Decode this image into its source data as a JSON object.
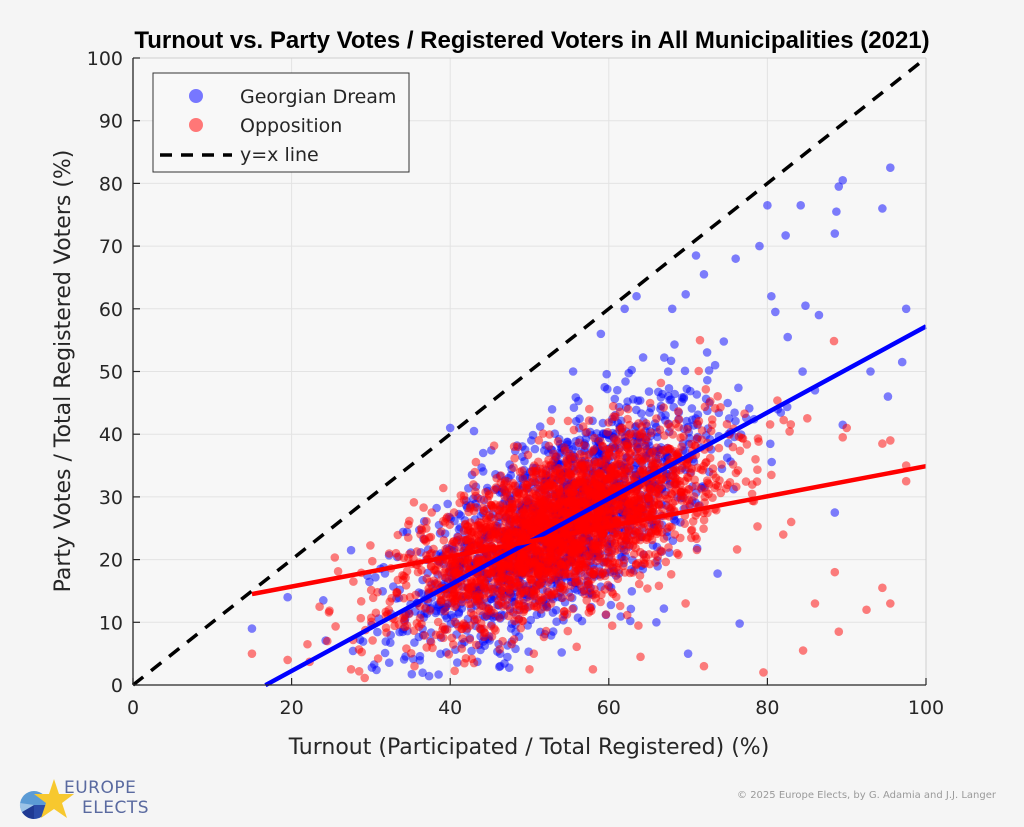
{
  "chart_data": {
    "type": "scatter",
    "title": "Turnout vs. Party Votes / Registered Voters in All Municipalities (2021)",
    "xlabel": "Turnout (Participated / Total Registered) (%)",
    "ylabel": "Party Votes / Total Registered Voters (%)",
    "xlim": [
      0,
      100
    ],
    "ylim": [
      0,
      100
    ],
    "xticks": [
      "0",
      "20",
      "40",
      "60",
      "80",
      "100"
    ],
    "yticks": [
      "0",
      "10",
      "20",
      "30",
      "40",
      "50",
      "60",
      "70",
      "80",
      "90",
      "100"
    ],
    "grid": true,
    "legend_position": "top-left",
    "legend": [
      {
        "label": "Georgian Dream",
        "marker": "circle",
        "color": "#6666ff"
      },
      {
        "label": "Opposition",
        "marker": "circle",
        "color": "#ff6666"
      },
      {
        "label": "y=x line",
        "marker": "dashed-line",
        "color": "#000000"
      }
    ],
    "series": [
      {
        "name": "Georgian Dream",
        "color": "#0000ff",
        "alpha": 0.5,
        "cloud": {
          "n": 1700,
          "x_mean": 54,
          "x_sd": 9.5,
          "slope": 0.69,
          "intercept": -11.5,
          "resid_sd": 7.5
        },
        "outliers": [
          [
            15,
            9
          ],
          [
            19.5,
            14
          ],
          [
            24,
            13.5
          ],
          [
            27.5,
            21.5
          ],
          [
            40,
            41
          ],
          [
            43,
            40.5
          ],
          [
            55.5,
            50
          ],
          [
            59,
            56
          ],
          [
            62,
            60
          ],
          [
            63.5,
            62
          ],
          [
            68,
            60
          ],
          [
            71,
            68.5
          ],
          [
            72,
            65.5
          ],
          [
            76,
            68
          ],
          [
            79,
            70
          ],
          [
            80.5,
            62
          ],
          [
            80,
            76.5
          ],
          [
            81,
            59.5
          ],
          [
            82.3,
            71.7
          ],
          [
            84.2,
            76.5
          ],
          [
            84.8,
            60.5
          ],
          [
            86.5,
            59
          ],
          [
            88.5,
            72
          ],
          [
            88.7,
            75.5
          ],
          [
            89,
            79.5
          ],
          [
            89.5,
            80.5
          ],
          [
            94.5,
            76
          ],
          [
            95.5,
            82.5
          ],
          [
            97.5,
            60
          ],
          [
            95.2,
            46
          ],
          [
            97,
            51.5
          ],
          [
            93,
            50
          ],
          [
            86,
            47
          ],
          [
            89.5,
            41.5
          ],
          [
            88.5,
            27.5
          ],
          [
            76.5,
            9.8
          ],
          [
            70,
            5
          ],
          [
            66,
            10
          ]
        ],
        "fit_line": {
          "slope": 0.687,
          "intercept": -11.5,
          "x_range": [
            16.7,
            100
          ]
        }
      },
      {
        "name": "Opposition",
        "color": "#ff0000",
        "alpha": 0.5,
        "cloud": {
          "n": 2600,
          "x_mean": 54,
          "x_sd": 9.5,
          "slope": 0.5,
          "intercept": -2,
          "resid_sd": 5.8
        },
        "outliers": [
          [
            15,
            5
          ],
          [
            19.5,
            4
          ],
          [
            22,
            6.5
          ],
          [
            24.5,
            7
          ],
          [
            27.5,
            2.5
          ],
          [
            35.5,
            3
          ],
          [
            43,
            3.5
          ],
          [
            50,
            2.5
          ],
          [
            58,
            2.5
          ],
          [
            64,
            4.5
          ],
          [
            72,
            3
          ],
          [
            79.5,
            2
          ],
          [
            84.5,
            5.5
          ],
          [
            89,
            8.5
          ],
          [
            92.5,
            12
          ],
          [
            94.5,
            15.5
          ],
          [
            95.5,
            13
          ],
          [
            86,
            13
          ],
          [
            88.5,
            18
          ],
          [
            82,
            24
          ],
          [
            78.5,
            36
          ],
          [
            80.5,
            33.5
          ],
          [
            89.5,
            39.5
          ],
          [
            90,
            41
          ],
          [
            94.5,
            38.5
          ],
          [
            95.5,
            39
          ],
          [
            97.5,
            35
          ],
          [
            97.5,
            32.5
          ],
          [
            83,
            26
          ],
          [
            71.5,
            55
          ],
          [
            66,
            42.5
          ]
        ],
        "fit_line": {
          "slope": 0.24,
          "intercept": 10.9,
          "x_range": [
            15,
            100
          ]
        }
      }
    ],
    "reference_line": {
      "name": "y=x line",
      "from": [
        0,
        0
      ],
      "to": [
        100,
        100
      ],
      "style": "dashed",
      "color": "#000000"
    }
  },
  "footer": {
    "logo_line1": "EUROPE",
    "logo_line2": "ELECTS",
    "credit": "© 2025 Europe Elects, by G. Adamia and J.J. Langer"
  }
}
